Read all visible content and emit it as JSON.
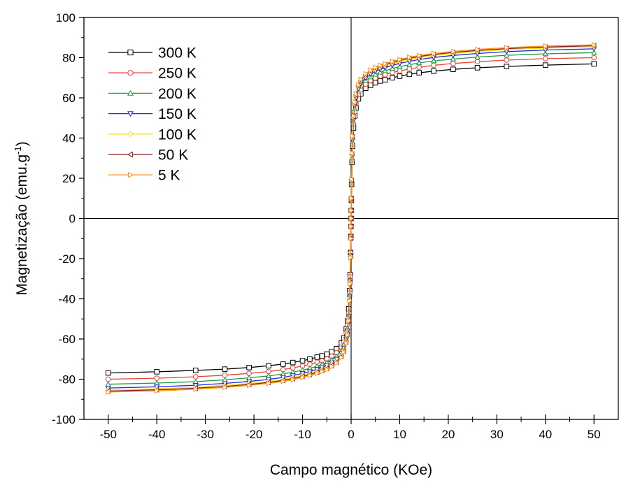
{
  "chart_data": {
    "type": "line",
    "title": "",
    "xlabel": "Campo magnético (KOe)",
    "ylabel_main": "Magnetização (emu.g",
    "ylabel_sup": "-1",
    "ylabel_close": ")",
    "xlim": [
      -55,
      55
    ],
    "ylim": [
      -100,
      100
    ],
    "xticks": [
      -50,
      -40,
      -30,
      -20,
      -10,
      0,
      10,
      20,
      30,
      40,
      50
    ],
    "yticks": [
      -100,
      -80,
      -60,
      -40,
      -20,
      0,
      20,
      40,
      60,
      80,
      100
    ],
    "grid": false,
    "legend_position": "top-left",
    "zero_lines": true,
    "x": [
      0,
      0.02,
      0.05,
      0.1,
      0.2,
      0.3,
      0.5,
      0.75,
      1,
      1.5,
      2,
      3,
      4,
      5,
      6,
      7,
      8.5,
      10,
      12,
      14,
      17,
      21,
      26,
      32,
      40,
      50
    ],
    "series": [
      {
        "name": "300 K",
        "color": "#000000",
        "marker": "square",
        "values": [
          0,
          4,
          9,
          17,
          28,
          36,
          45,
          51,
          55,
          59.5,
          62,
          64.8,
          66.3,
          67.5,
          68.4,
          69,
          70,
          70.8,
          71.7,
          72.5,
          73.3,
          74.2,
          75,
          75.6,
          76.3,
          76.9
        ]
      },
      {
        "name": "250 K",
        "color": "#e8413a",
        "marker": "circle",
        "values": [
          0,
          4,
          9,
          17,
          29,
          37,
          47,
          53,
          57,
          61.5,
          64,
          66.8,
          68.5,
          69.8,
          70.8,
          71.5,
          72.6,
          73.4,
          74.4,
          75.2,
          76.2,
          77.1,
          78,
          78.8,
          79.5,
          80
        ]
      },
      {
        "name": "200 K",
        "color": "#1e9a3a",
        "marker": "triangle-up",
        "values": [
          0,
          4,
          9.5,
          18,
          30,
          38,
          48,
          54.5,
          58.5,
          63,
          65.8,
          68.6,
          70.4,
          71.7,
          72.7,
          73.5,
          74.6,
          75.5,
          76.5,
          77.4,
          78.4,
          79.3,
          80.3,
          81.2,
          81.9,
          82.5
        ]
      },
      {
        "name": "150 K",
        "color": "#2027e0",
        "marker": "triangle-down",
        "values": [
          0,
          4,
          10,
          18.5,
          31,
          39,
          49,
          56,
          60,
          64.5,
          67.2,
          70,
          71.8,
          73.2,
          74.2,
          75,
          76.2,
          77.1,
          78.2,
          79.1,
          80.1,
          81.1,
          82.1,
          83,
          83.8,
          84.4
        ]
      },
      {
        "name": "100 K",
        "color": "#f6e11c",
        "marker": "diamond",
        "values": [
          0,
          4,
          10,
          19,
          31.5,
          40,
          50,
          57,
          61,
          65.5,
          68.2,
          71,
          72.8,
          74.2,
          75.2,
          76,
          77.2,
          78.1,
          79.2,
          80.1,
          81.1,
          82.1,
          83.1,
          84,
          84.8,
          85.4
        ]
      },
      {
        "name": "50 K",
        "color": "#8b1a1a",
        "marker": "triangle-left",
        "values": [
          0,
          4,
          10,
          19,
          32,
          40.5,
          50.5,
          57.5,
          61.5,
          66,
          68.7,
          71.5,
          73.3,
          74.7,
          75.7,
          76.5,
          77.7,
          78.6,
          79.7,
          80.6,
          81.6,
          82.6,
          83.6,
          84.5,
          85.3,
          85.9
        ]
      },
      {
        "name": "5 K",
        "color": "#f7941d",
        "marker": "triangle-right",
        "values": [
          0,
          4,
          10,
          19.5,
          32.5,
          41,
          51,
          58,
          62,
          66.5,
          69.2,
          72,
          73.8,
          75.2,
          76.2,
          77,
          78.2,
          79.1,
          80.2,
          81.1,
          82.1,
          83.1,
          84.1,
          85,
          85.8,
          86.4
        ]
      }
    ]
  }
}
